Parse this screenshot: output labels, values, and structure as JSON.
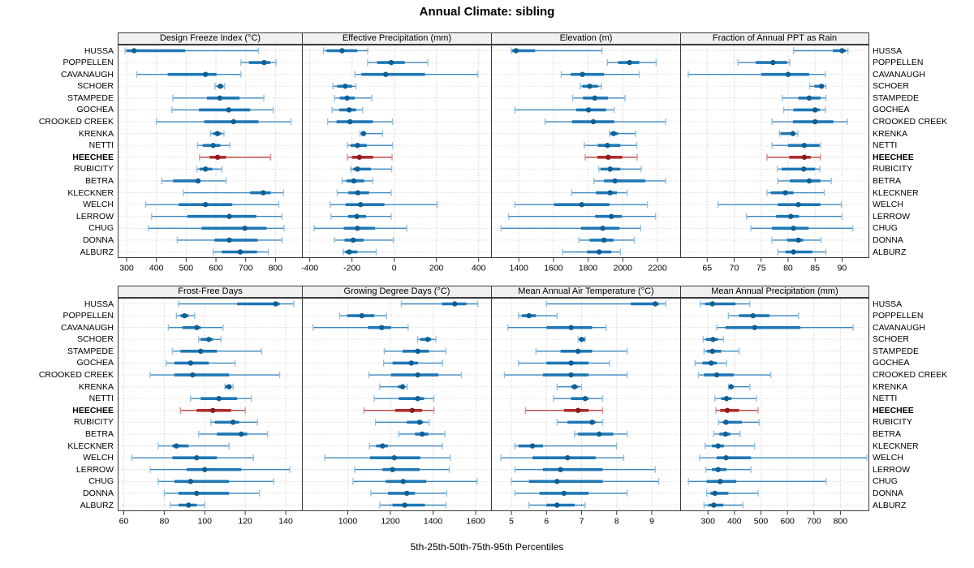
{
  "title": "Annual Climate: sibling",
  "footer": "5th-25th-50th-75th-95th Percentiles",
  "highlight_site": "HEECHEE",
  "sites": [
    "HUSSA",
    "POPPELLEN",
    "CAVANAUGH",
    "SCHOER",
    "STAMPEDE",
    "GOCHEA",
    "CROOKED CREEK",
    "KRENKA",
    "NETTI",
    "HEECHEE",
    "RUBICITY",
    "BETRA",
    "KLECKNER",
    "WELCH",
    "LERROW",
    "CHUG",
    "DONNA",
    "ALBURZ"
  ],
  "colors": {
    "normal": {
      "whisker": "#3d88bd",
      "cap": "#8fc0e0",
      "band": "#1f77b4",
      "dot": "#0d5f95"
    },
    "highlight": {
      "whisker": "#b43a3a",
      "cap": "#d89090",
      "band": "#b02c2c",
      "dot": "#8c1d1d"
    },
    "grid_v": "#c4c4c4",
    "grid_h": "#cfcfcf",
    "border": "#3a3a3a",
    "header_bg": "#f0f0f0"
  },
  "chart_data": {
    "type": "table",
    "subtype": "percentile-interval-dot-plot",
    "percentiles": [
      5,
      25,
      50,
      75,
      95
    ],
    "grid": true,
    "rows": 2,
    "cols": 4,
    "categories": [
      "HUSSA",
      "POPPELLEN",
      "CAVANAUGH",
      "SCHOER",
      "STAMPEDE",
      "GOCHEA",
      "CROOKED CREEK",
      "KRENKA",
      "NETTI",
      "HEECHEE",
      "RUBICITY",
      "BETRA",
      "KLECKNER",
      "WELCH",
      "LERROW",
      "CHUG",
      "DONNA",
      "ALBURZ"
    ],
    "panels": [
      {
        "title": "Design Freeze Index (°C)",
        "slug": "design-freeze-index",
        "xlim": [
          270,
          889
        ],
        "ticks": [
          300,
          400,
          500,
          600,
          700,
          800
        ],
        "values": [
          [
            295,
            300,
            325,
            497,
            743
          ],
          [
            684,
            711,
            762,
            783,
            802
          ],
          [
            334,
            438,
            565,
            602,
            684
          ],
          [
            597,
            605,
            615,
            624,
            629
          ],
          [
            455,
            570,
            613,
            679,
            761
          ],
          [
            452,
            543,
            643,
            715,
            793
          ],
          [
            400,
            561,
            659,
            743,
            852
          ],
          [
            582,
            591,
            605,
            618,
            627
          ],
          [
            538,
            556,
            591,
            615,
            647
          ],
          [
            545,
            579,
            606,
            634,
            784
          ],
          [
            536,
            545,
            565,
            588,
            620
          ],
          [
            418,
            456,
            540,
            546,
            634
          ],
          [
            491,
            715,
            759,
            784,
            827
          ],
          [
            364,
            475,
            565,
            655,
            811
          ],
          [
            384,
            504,
            645,
            736,
            822
          ],
          [
            373,
            552,
            697,
            770,
            829
          ],
          [
            470,
            595,
            645,
            740,
            822
          ],
          [
            591,
            620,
            682,
            738,
            776
          ]
        ]
      },
      {
        "title": "Effective Precipitation (mm)",
        "slug": "effective-precipitation",
        "xlim": [
          -437,
          459
        ],
        "ticks": [
          -400,
          -200,
          0,
          200,
          400
        ],
        "values": [
          [
            -335,
            -320,
            -247,
            -175,
            -125
          ],
          [
            -126,
            -81,
            -14,
            50,
            159
          ],
          [
            -186,
            -155,
            -40,
            146,
            396
          ],
          [
            -290,
            -270,
            -232,
            -200,
            -181
          ],
          [
            -283,
            -258,
            -223,
            -187,
            -106
          ],
          [
            -294,
            -260,
            -213,
            -181,
            -149
          ],
          [
            -315,
            -273,
            -209,
            -101,
            -8
          ],
          [
            -162,
            -158,
            -145,
            -136,
            -55
          ],
          [
            -222,
            -206,
            -174,
            -130,
            -8
          ],
          [
            -222,
            -200,
            -165,
            -100,
            -10
          ],
          [
            -206,
            -194,
            -174,
            -110,
            -12
          ],
          [
            -247,
            -226,
            -191,
            -142,
            -101
          ],
          [
            -270,
            -217,
            -172,
            -119,
            -14
          ],
          [
            -303,
            -230,
            -159,
            -46,
            204
          ],
          [
            -299,
            -219,
            -177,
            -133,
            -14
          ],
          [
            -379,
            -239,
            -174,
            -91,
            60
          ],
          [
            -283,
            -235,
            -194,
            -145,
            -4
          ],
          [
            -242,
            -232,
            -213,
            -174,
            -85
          ]
        ]
      },
      {
        "title": "Elevation (m)",
        "slug": "elevation",
        "xlim": [
          1240,
          2331
        ],
        "ticks": [
          1400,
          1600,
          1800,
          2000,
          2200
        ],
        "values": [
          [
            1356,
            1361,
            1384,
            1494,
            1880
          ],
          [
            1911,
            1973,
            2039,
            2095,
            2192
          ],
          [
            1645,
            1700,
            1767,
            1892,
            2095
          ],
          [
            1755,
            1767,
            1809,
            1856,
            1877
          ],
          [
            1711,
            1770,
            1838,
            1914,
            2013
          ],
          [
            1377,
            1731,
            1802,
            1903,
            1950
          ],
          [
            1552,
            1708,
            1830,
            1950,
            2247
          ],
          [
            1923,
            1927,
            1947,
            1973,
            2075
          ],
          [
            1778,
            1856,
            1911,
            1986,
            2080
          ],
          [
            1783,
            1853,
            1916,
            1997,
            2083
          ],
          [
            1861,
            1872,
            1927,
            1986,
            2106
          ],
          [
            1833,
            1892,
            1955,
            2130,
            2247
          ],
          [
            1705,
            1845,
            1927,
            1966,
            2025
          ],
          [
            1377,
            1603,
            1763,
            1923,
            2142
          ],
          [
            1341,
            1841,
            1934,
            1994,
            2189
          ],
          [
            1298,
            1759,
            1884,
            1981,
            2103
          ],
          [
            1747,
            1809,
            1892,
            1947,
            2067
          ],
          [
            1653,
            1794,
            1864,
            1934,
            1986
          ]
        ]
      },
      {
        "title": "Fraction of Annual PPT as Rain",
        "slug": "fraction-ppt-rain",
        "xlim": [
          60,
          94.9
        ],
        "ticks": [
          65,
          70,
          75,
          80,
          85,
          90
        ],
        "values": [
          [
            81.0,
            88.3,
            90.0,
            90.7,
            91.1
          ],
          [
            70.7,
            74.0,
            77.2,
            79.8,
            80.3
          ],
          [
            61.5,
            75.0,
            80.0,
            83.9,
            86.9
          ],
          [
            84.0,
            84.9,
            86.2,
            86.6,
            87.0
          ],
          [
            78.9,
            81.9,
            83.9,
            86.0,
            87.0
          ],
          [
            79.2,
            81.0,
            85.0,
            85.9,
            86.9
          ],
          [
            77.0,
            80.9,
            85.0,
            88.4,
            91.0
          ],
          [
            78.4,
            78.6,
            80.9,
            81.0,
            81.8
          ],
          [
            77.0,
            80.0,
            83.0,
            85.8,
            86.0
          ],
          [
            76.1,
            80.2,
            83.0,
            84.2,
            86.0
          ],
          [
            78.0,
            78.8,
            82.9,
            85.0,
            85.9
          ],
          [
            78.1,
            80.3,
            83.9,
            86.0,
            88.0
          ],
          [
            76.1,
            76.8,
            79.5,
            81.0,
            86.7
          ],
          [
            67.0,
            78.1,
            81.9,
            86.0,
            89.9
          ],
          [
            72.3,
            77.8,
            80.5,
            82.0,
            90.0
          ],
          [
            73.1,
            77.0,
            81.0,
            83.8,
            92.0
          ],
          [
            77.0,
            79.8,
            81.9,
            82.8,
            86.1
          ],
          [
            78.1,
            79.5,
            81.0,
            84.5,
            87.0
          ]
        ]
      },
      {
        "title": "Frost-Free Days",
        "slug": "frost-free-days",
        "xlim": [
          57,
          148
        ],
        "ticks": [
          60,
          80,
          100,
          120,
          140
        ],
        "values": [
          [
            87,
            116,
            135,
            137,
            144
          ],
          [
            86,
            88,
            90,
            92,
            95
          ],
          [
            82,
            89,
            96,
            98,
            109
          ],
          [
            97,
            98,
            102,
            104,
            108
          ],
          [
            84,
            88,
            98,
            106,
            128
          ],
          [
            81,
            85,
            93,
            102,
            115
          ],
          [
            73,
            85,
            94,
            112,
            137
          ],
          [
            110,
            110,
            112,
            113,
            114
          ],
          [
            93,
            98,
            107,
            116,
            123
          ],
          [
            88,
            96,
            104,
            113,
            120
          ],
          [
            103,
            105,
            114,
            117,
            126
          ],
          [
            97,
            106,
            118,
            121,
            131
          ],
          [
            77,
            84,
            86,
            92,
            112
          ],
          [
            64,
            84,
            96,
            106,
            124
          ],
          [
            73,
            91,
            100,
            118,
            142
          ],
          [
            77,
            85,
            93,
            112,
            134
          ],
          [
            80,
            87,
            96,
            112,
            127
          ],
          [
            83,
            87,
            92,
            96,
            100
          ]
        ]
      },
      {
        "title": "Growing Degree Days (°C)",
        "slug": "growing-degree-days",
        "xlim": [
          785,
          1672
        ],
        "ticks": [
          1000,
          1200,
          1400,
          1600
        ],
        "values": [
          [
            1251,
            1442,
            1502,
            1556,
            1610
          ],
          [
            962,
            997,
            1066,
            1124,
            1182
          ],
          [
            837,
            1095,
            1159,
            1203,
            1283
          ],
          [
            1328,
            1340,
            1375,
            1391,
            1413
          ],
          [
            1171,
            1257,
            1328,
            1381,
            1460
          ],
          [
            1168,
            1210,
            1298,
            1330,
            1444
          ],
          [
            1099,
            1203,
            1328,
            1425,
            1533
          ],
          [
            1150,
            1235,
            1257,
            1264,
            1279
          ],
          [
            1124,
            1239,
            1328,
            1358,
            1404
          ],
          [
            1076,
            1222,
            1302,
            1349,
            1404
          ],
          [
            1130,
            1277,
            1337,
            1353,
            1381
          ],
          [
            1239,
            1315,
            1349,
            1378,
            1455
          ],
          [
            1102,
            1133,
            1163,
            1188,
            1444
          ],
          [
            892,
            1104,
            1218,
            1340,
            1480
          ],
          [
            1032,
            1163,
            1210,
            1337,
            1476
          ],
          [
            1025,
            1178,
            1260,
            1368,
            1607
          ],
          [
            1108,
            1188,
            1277,
            1315,
            1464
          ],
          [
            1150,
            1210,
            1267,
            1362,
            1461
          ]
        ]
      },
      {
        "title": "Mean Annual Air Temperature (°C)",
        "slug": "mean-annual-air-temp",
        "xlim": [
          4.42,
          9.81
        ],
        "ticks": [
          5,
          6,
          7,
          8,
          9
        ],
        "values": [
          [
            6.0,
            8.4,
            9.1,
            9.2,
            9.4
          ],
          [
            5.2,
            5.3,
            5.5,
            5.7,
            6.3
          ],
          [
            4.9,
            6.0,
            6.7,
            7.3,
            7.7
          ],
          [
            6.9,
            7.0,
            7.0,
            7.1,
            7.1
          ],
          [
            5.7,
            6.4,
            6.9,
            7.3,
            8.3
          ],
          [
            5.2,
            6.0,
            6.7,
            7.2,
            7.8
          ],
          [
            4.8,
            5.9,
            6.7,
            7.2,
            8.3
          ],
          [
            6.3,
            6.7,
            6.8,
            6.9,
            7.0
          ],
          [
            6.2,
            6.7,
            7.1,
            7.2,
            7.6
          ],
          [
            5.4,
            6.5,
            6.9,
            7.2,
            7.6
          ],
          [
            6.3,
            6.6,
            7.3,
            7.4,
            7.6
          ],
          [
            6.8,
            6.9,
            7.5,
            7.9,
            8.3
          ],
          [
            5.1,
            5.2,
            5.6,
            5.9,
            8.0
          ],
          [
            4.7,
            5.6,
            6.6,
            7.4,
            8.2
          ],
          [
            5.1,
            5.9,
            6.4,
            7.6,
            9.1
          ],
          [
            5.0,
            5.5,
            6.3,
            7.6,
            9.2
          ],
          [
            5.1,
            5.8,
            6.5,
            7.2,
            8.3
          ],
          [
            5.5,
            6.0,
            6.3,
            6.8,
            7.1
          ]
        ]
      },
      {
        "title": "Mean Annual Precipitation (mm)",
        "slug": "mean-annual-precip",
        "xlim": [
          195,
          906
        ],
        "ticks": [
          300,
          400,
          500,
          600,
          700,
          800
        ],
        "values": [
          [
            271,
            289,
            317,
            404,
            458
          ],
          [
            377,
            417,
            470,
            532,
            642
          ],
          [
            333,
            366,
            476,
            649,
            848
          ],
          [
            282,
            292,
            319,
            338,
            358
          ],
          [
            285,
            295,
            317,
            350,
            417
          ],
          [
            251,
            279,
            312,
            333,
            370
          ],
          [
            264,
            285,
            333,
            397,
            537
          ],
          [
            377,
            381,
            387,
            397,
            458
          ],
          [
            326,
            350,
            370,
            389,
            483
          ],
          [
            330,
            346,
            373,
            417,
            489
          ],
          [
            340,
            356,
            368,
            428,
            493
          ],
          [
            322,
            343,
            366,
            384,
            421
          ],
          [
            289,
            315,
            338,
            360,
            476
          ],
          [
            268,
            333,
            368,
            462,
            900
          ],
          [
            292,
            315,
            338,
            370,
            462
          ],
          [
            226,
            295,
            346,
            407,
            746
          ],
          [
            295,
            309,
            326,
            377,
            489
          ],
          [
            285,
            302,
            322,
            358,
            432
          ]
        ]
      }
    ]
  }
}
